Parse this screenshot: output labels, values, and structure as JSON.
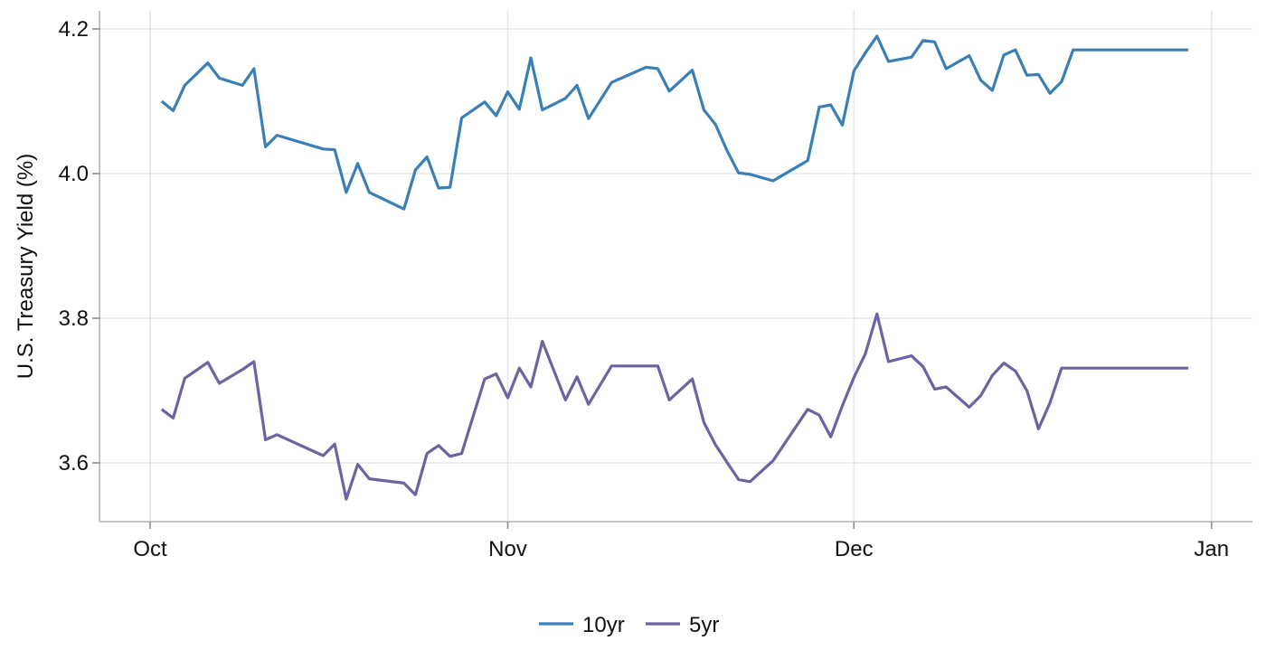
{
  "chart_data": {
    "type": "line",
    "xlabel": "",
    "ylabel": "U.S. Treasury Yield (%)",
    "xlim": [
      "2023-10-01",
      "2023-12-31"
    ],
    "ylim": [
      3.52,
      4.22
    ],
    "x_ticks": [
      {
        "date": "2023-10-01",
        "label": "Oct"
      },
      {
        "date": "2023-11-01",
        "label": "Nov"
      },
      {
        "date": "2023-12-01",
        "label": "Dec"
      },
      {
        "date": "2024-01-01",
        "label": "Jan"
      }
    ],
    "y_ticks": [
      {
        "value": 3.6,
        "label": "3.6"
      },
      {
        "value": 3.8,
        "label": "3.8"
      },
      {
        "value": 4.0,
        "label": "4.0"
      },
      {
        "value": 4.2,
        "label": "4.2"
      }
    ],
    "grid": true,
    "legend_position": "bottom",
    "series": [
      {
        "name": "10yr",
        "color": "#3a7fb6",
        "x": [
          "2023-10-02",
          "2023-10-03",
          "2023-10-04",
          "2023-10-06",
          "2023-10-07",
          "2023-10-09",
          "2023-10-10",
          "2023-10-11",
          "2023-10-12",
          "2023-10-16",
          "2023-10-17",
          "2023-10-18",
          "2023-10-19",
          "2023-10-20",
          "2023-10-23",
          "2023-10-24",
          "2023-10-25",
          "2023-10-26",
          "2023-10-27",
          "2023-10-28",
          "2023-10-30",
          "2023-10-31",
          "2023-11-01",
          "2023-11-02",
          "2023-11-03",
          "2023-11-04",
          "2023-11-06",
          "2023-11-07",
          "2023-11-08",
          "2023-11-10",
          "2023-11-13",
          "2023-11-14",
          "2023-11-15",
          "2023-11-17",
          "2023-11-18",
          "2023-11-19",
          "2023-11-20",
          "2023-11-21",
          "2023-11-22",
          "2023-11-24",
          "2023-11-27",
          "2023-11-28",
          "2023-11-29",
          "2023-11-30",
          "2023-12-01",
          "2023-12-02",
          "2023-12-03",
          "2023-12-04",
          "2023-12-06",
          "2023-12-07",
          "2023-12-08",
          "2023-12-09",
          "2023-12-11",
          "2023-12-12",
          "2023-12-13",
          "2023-12-14",
          "2023-12-15",
          "2023-12-16",
          "2023-12-17",
          "2023-12-18",
          "2023-12-19",
          "2023-12-20",
          "2023-12-21",
          "2023-12-22",
          "2023-12-23",
          "2023-12-27",
          "2023-12-28",
          "2023-12-29",
          "2023-12-30"
        ],
        "y": [
          4.1,
          4.087,
          4.122,
          4.153,
          4.132,
          4.122,
          4.145,
          4.037,
          4.053,
          4.034,
          4.033,
          3.974,
          4.014,
          3.974,
          3.951,
          4.005,
          4.023,
          3.98,
          3.981,
          4.077,
          4.099,
          4.08,
          4.113,
          4.089,
          4.16,
          4.088,
          4.104,
          4.122,
          4.076,
          4.126,
          4.147,
          4.145,
          4.114,
          4.143,
          4.088,
          4.068,
          4.032,
          4.001,
          3.999,
          3.99,
          4.018,
          4.092,
          4.095,
          4.067,
          4.142,
          4.167,
          4.19,
          4.155,
          4.161,
          4.184,
          4.182,
          4.145,
          4.163,
          4.129,
          4.115,
          4.164,
          4.171,
          4.136,
          4.137,
          4.111,
          4.127,
          4.171,
          4.171,
          4.171,
          4.171,
          4.171,
          4.171,
          4.171,
          4.171
        ]
      },
      {
        "name": "5yr",
        "color": "#6e63a0",
        "x": [
          "2023-10-02",
          "2023-10-03",
          "2023-10-04",
          "2023-10-06",
          "2023-10-07",
          "2023-10-09",
          "2023-10-10",
          "2023-10-11",
          "2023-10-12",
          "2023-10-16",
          "2023-10-17",
          "2023-10-18",
          "2023-10-19",
          "2023-10-20",
          "2023-10-23",
          "2023-10-24",
          "2023-10-25",
          "2023-10-26",
          "2023-10-27",
          "2023-10-28",
          "2023-10-30",
          "2023-10-31",
          "2023-11-01",
          "2023-11-02",
          "2023-11-03",
          "2023-11-04",
          "2023-11-06",
          "2023-11-07",
          "2023-11-08",
          "2023-11-10",
          "2023-11-13",
          "2023-11-14",
          "2023-11-15",
          "2023-11-17",
          "2023-11-18",
          "2023-11-19",
          "2023-11-20",
          "2023-11-21",
          "2023-11-22",
          "2023-11-24",
          "2023-11-27",
          "2023-11-28",
          "2023-11-29",
          "2023-11-30",
          "2023-12-01",
          "2023-12-02",
          "2023-12-03",
          "2023-12-04",
          "2023-12-06",
          "2023-12-07",
          "2023-12-08",
          "2023-12-09",
          "2023-12-11",
          "2023-12-12",
          "2023-12-13",
          "2023-12-14",
          "2023-12-15",
          "2023-12-16",
          "2023-12-17",
          "2023-12-18",
          "2023-12-19",
          "2023-12-20",
          "2023-12-21",
          "2023-12-22",
          "2023-12-23",
          "2023-12-27",
          "2023-12-28",
          "2023-12-29",
          "2023-12-30"
        ],
        "y": [
          3.674,
          3.662,
          3.717,
          3.739,
          3.71,
          3.729,
          3.74,
          3.632,
          3.639,
          3.61,
          3.626,
          3.55,
          3.598,
          3.578,
          3.572,
          3.556,
          3.613,
          3.624,
          3.609,
          3.613,
          3.716,
          3.723,
          3.69,
          3.731,
          3.705,
          3.768,
          3.687,
          3.719,
          3.681,
          3.734,
          3.734,
          3.734,
          3.687,
          3.716,
          3.656,
          3.625,
          3.601,
          3.577,
          3.574,
          3.603,
          3.674,
          3.666,
          3.636,
          3.679,
          3.718,
          3.751,
          3.806,
          3.74,
          3.748,
          3.733,
          3.702,
          3.705,
          3.677,
          3.693,
          3.721,
          3.738,
          3.727,
          3.7,
          3.647,
          3.683,
          3.731,
          3.731,
          3.731,
          3.731,
          3.731,
          3.731,
          3.731,
          3.731,
          3.731
        ]
      }
    ]
  }
}
